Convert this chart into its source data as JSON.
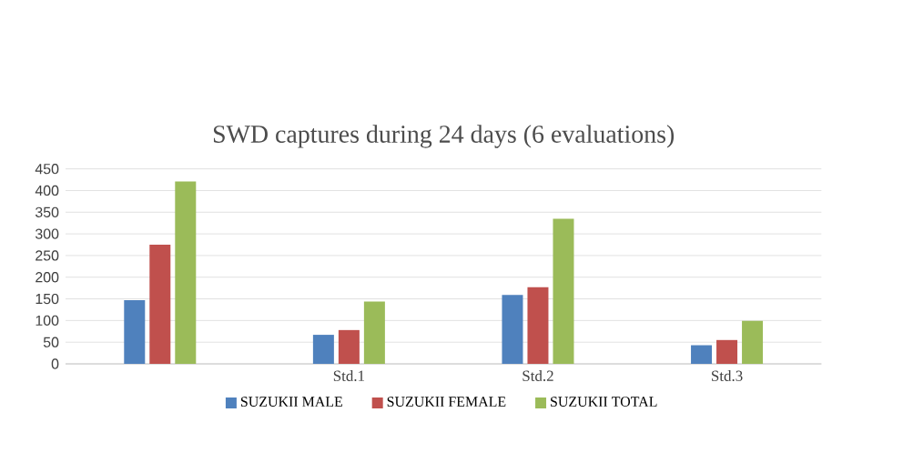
{
  "chart_data": {
    "type": "bar",
    "title": "SWD captures during 24 days (6 evaluations)",
    "categories": [
      null,
      "Std.1",
      "Std.2",
      "Std.3"
    ],
    "series": [
      {
        "name": "SUZUKII MALE",
        "color": "#4f81bd",
        "values": [
          147,
          67,
          159,
          43
        ]
      },
      {
        "name": "SUZUKII FEMALE",
        "color": "#c0504d",
        "values": [
          275,
          78,
          177,
          55
        ]
      },
      {
        "name": "SUZUKII TOTAL",
        "color": "#9bbb59",
        "values": [
          421,
          144,
          335,
          99
        ]
      }
    ],
    "ylim": [
      0,
      450
    ],
    "yticks": [
      0,
      50,
      100,
      150,
      200,
      250,
      300,
      350,
      400,
      450
    ],
    "grid": "y",
    "legend": "bottom"
  }
}
